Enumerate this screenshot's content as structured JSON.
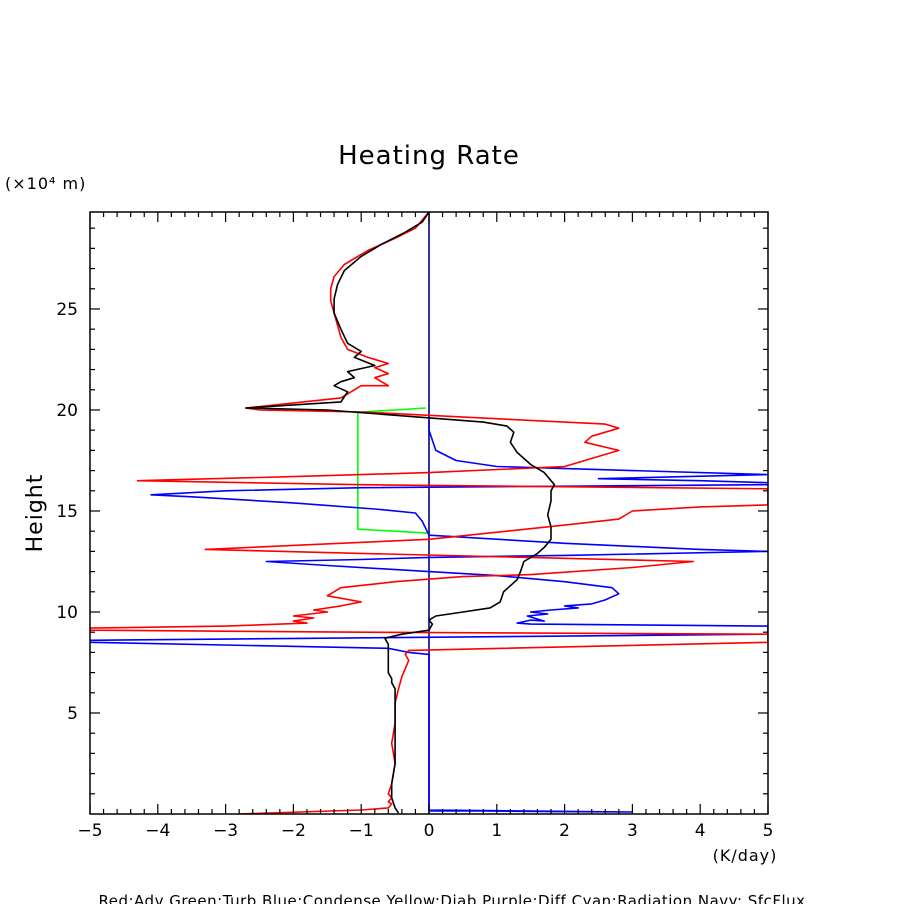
{
  "chart_data": {
    "type": "line",
    "title": "Heating Rate",
    "xlabel": "(K/day)",
    "ylabel": "Height",
    "y_unit": "(×10⁴ m)",
    "xlim": [
      -5,
      5
    ],
    "ylim": [
      0,
      29.8
    ],
    "x_ticks": [
      -5,
      -4,
      -3,
      -2,
      -1,
      0,
      1,
      2,
      3,
      4,
      5
    ],
    "y_ticks": [
      5,
      10,
      15,
      20,
      25
    ],
    "grid": false,
    "legend_text": "Red:Adv  Green:Turb  Blue:Condense  Yellow:Diab  Purple:Diff  Cyan:Radiation  Navy: SfcFlux",
    "colors": {
      "red": "#ff0000",
      "green": "#00ff00",
      "blue": "#0000ff",
      "navy": "#000080",
      "black": "#000000"
    },
    "series": [
      {
        "color": "navy",
        "points": [
          [
            0,
            0
          ],
          [
            0,
            29.8
          ]
        ]
      },
      {
        "color": "green",
        "points": [
          [
            -0.05,
            20.1
          ],
          [
            -0.5,
            20.0
          ],
          [
            -1.0,
            19.9
          ],
          [
            -1.05,
            19.9
          ],
          [
            -1.05,
            14.1
          ],
          [
            -0.5,
            14.0
          ],
          [
            0,
            13.9
          ]
        ]
      },
      {
        "color": "blue",
        "points": [
          [
            0,
            0.15
          ],
          [
            0.8,
            0.15
          ],
          [
            1.8,
            0.12
          ],
          [
            3.0,
            0.1
          ],
          [
            0,
            0.2
          ],
          [
            0,
            7.9
          ],
          [
            -0.3,
            8.0
          ],
          [
            -0.6,
            8.2
          ],
          [
            -5,
            8.5
          ],
          [
            -5,
            8.6
          ],
          [
            5,
            8.9
          ],
          [
            5,
            9.0
          ],
          [
            5,
            9.3
          ],
          [
            1.5,
            9.4
          ],
          [
            1.3,
            9.45
          ],
          [
            1.5,
            9.6
          ],
          [
            1.7,
            9.55
          ],
          [
            1.45,
            9.8
          ],
          [
            1.75,
            9.9
          ],
          [
            1.5,
            10.0
          ],
          [
            1.8,
            10.1
          ],
          [
            2.2,
            10.2
          ],
          [
            2.0,
            10.3
          ],
          [
            2.4,
            10.4
          ],
          [
            2.6,
            10.6
          ],
          [
            2.8,
            10.9
          ],
          [
            2.7,
            11.2
          ],
          [
            2.0,
            11.5
          ],
          [
            1.0,
            11.8
          ],
          [
            0,
            12.0
          ],
          [
            -1.5,
            12.3
          ],
          [
            -2.4,
            12.5
          ],
          [
            -1.0,
            12.6
          ],
          [
            0,
            12.7
          ],
          [
            2.0,
            12.8
          ],
          [
            5,
            13.0
          ],
          [
            4.0,
            13.1
          ],
          [
            2.0,
            13.4
          ],
          [
            0.0,
            13.8
          ],
          [
            -0.1,
            14.5
          ],
          [
            -0.2,
            14.9
          ],
          [
            -0.8,
            15.1
          ],
          [
            -2.0,
            15.4
          ],
          [
            -3.5,
            15.7
          ],
          [
            -4.1,
            15.8
          ],
          [
            -3.0,
            16.0
          ],
          [
            -1.0,
            16.15
          ],
          [
            3.0,
            16.25
          ],
          [
            5.0,
            16.3
          ],
          [
            5.0,
            16.4
          ],
          [
            4.0,
            16.5
          ],
          [
            2.5,
            16.6
          ],
          [
            5.0,
            16.8
          ],
          [
            1.0,
            17.2
          ],
          [
            0.4,
            17.5
          ],
          [
            0.1,
            18.0
          ],
          [
            0.0,
            19.0
          ],
          [
            0.0,
            19.5
          ]
        ]
      },
      {
        "color": "red",
        "points": [
          [
            -2.8,
            0
          ],
          [
            -1.0,
            0.2
          ],
          [
            -0.6,
            0.3
          ],
          [
            -0.55,
            0.5
          ],
          [
            -0.6,
            0.6
          ],
          [
            -0.55,
            0.8
          ],
          [
            -0.6,
            1.0
          ],
          [
            -0.55,
            1.5
          ],
          [
            -0.5,
            2.5
          ],
          [
            -0.55,
            3.5
          ],
          [
            -0.5,
            4.5
          ],
          [
            -0.5,
            5.5
          ],
          [
            -0.45,
            6.2
          ],
          [
            -0.4,
            6.8
          ],
          [
            -0.35,
            7.2
          ],
          [
            -0.3,
            7.6
          ],
          [
            -0.35,
            7.9
          ],
          [
            -0.3,
            8.1
          ],
          [
            5.0,
            8.5
          ],
          [
            5.0,
            8.9
          ],
          [
            -1.0,
            9.0
          ],
          [
            -5.0,
            9.1
          ],
          [
            -5.0,
            9.2
          ],
          [
            -3.0,
            9.3
          ],
          [
            -1.8,
            9.45
          ],
          [
            -2.0,
            9.55
          ],
          [
            -1.7,
            9.7
          ],
          [
            -2.0,
            9.8
          ],
          [
            -1.5,
            10.0
          ],
          [
            -1.7,
            10.1
          ],
          [
            -1.3,
            10.3
          ],
          [
            -1.0,
            10.5
          ],
          [
            -1.5,
            10.8
          ],
          [
            -1.3,
            11.2
          ],
          [
            -0.5,
            11.5
          ],
          [
            0.5,
            11.75
          ],
          [
            1.5,
            11.85
          ],
          [
            3.0,
            12.2
          ],
          [
            3.9,
            12.5
          ],
          [
            -1.0,
            12.9
          ],
          [
            -3.3,
            13.1
          ],
          [
            0.0,
            13.6
          ],
          [
            2.0,
            14.3
          ],
          [
            2.8,
            14.6
          ],
          [
            3.0,
            15.0
          ],
          [
            4.0,
            15.2
          ],
          [
            5.0,
            15.3
          ],
          [
            5.0,
            16.1
          ],
          [
            -1.0,
            16.3
          ],
          [
            -4.3,
            16.5
          ],
          [
            -2.0,
            16.7
          ],
          [
            0.0,
            16.9
          ],
          [
            2.0,
            17.2
          ],
          [
            2.8,
            18.0
          ],
          [
            2.3,
            18.4
          ],
          [
            2.4,
            18.7
          ],
          [
            2.8,
            19.1
          ],
          [
            2.6,
            19.3
          ],
          [
            -1.0,
            19.9
          ],
          [
            -2.5,
            20.0
          ],
          [
            -2.7,
            20.1
          ],
          [
            -1.3,
            20.6
          ],
          [
            -1.0,
            21.2
          ],
          [
            -0.6,
            21.2
          ],
          [
            -0.8,
            21.6
          ],
          [
            -0.6,
            21.8
          ],
          [
            -0.8,
            22.1
          ],
          [
            -0.6,
            22.3
          ],
          [
            -0.9,
            22.6
          ],
          [
            -1.2,
            23.0
          ],
          [
            -1.3,
            23.6
          ],
          [
            -1.35,
            24.2
          ],
          [
            -1.4,
            24.8
          ],
          [
            -1.45,
            25.4
          ],
          [
            -1.45,
            26.0
          ],
          [
            -1.4,
            26.6
          ],
          [
            -1.25,
            27.2
          ],
          [
            -0.9,
            27.9
          ],
          [
            -0.5,
            28.5
          ],
          [
            -0.2,
            29.0
          ],
          [
            0,
            29.8
          ]
        ]
      },
      {
        "color": "black",
        "points": [
          [
            -0.45,
            0.05
          ],
          [
            -0.5,
            0.3
          ],
          [
            -0.55,
            0.8
          ],
          [
            -0.55,
            1.5
          ],
          [
            -0.5,
            2.5
          ],
          [
            -0.5,
            3.5
          ],
          [
            -0.5,
            4.5
          ],
          [
            -0.5,
            5.5
          ],
          [
            -0.5,
            6.2
          ],
          [
            -0.55,
            6.5
          ],
          [
            -0.55,
            6.7
          ],
          [
            -0.6,
            7.0
          ],
          [
            -0.6,
            7.5
          ],
          [
            -0.6,
            8.0
          ],
          [
            -0.6,
            8.4
          ],
          [
            -0.65,
            8.7
          ],
          [
            -0.4,
            8.9
          ],
          [
            -0.2,
            9.0
          ],
          [
            0.0,
            9.1
          ],
          [
            0.05,
            9.4
          ],
          [
            0.0,
            9.6
          ],
          [
            0.1,
            9.8
          ],
          [
            0.5,
            10.0
          ],
          [
            0.9,
            10.2
          ],
          [
            1.05,
            10.5
          ],
          [
            1.1,
            11.0
          ],
          [
            1.3,
            11.6
          ],
          [
            1.35,
            12.0
          ],
          [
            1.4,
            12.5
          ],
          [
            1.6,
            12.9
          ],
          [
            1.7,
            13.2
          ],
          [
            1.8,
            13.6
          ],
          [
            1.8,
            14.2
          ],
          [
            1.75,
            14.8
          ],
          [
            1.8,
            15.5
          ],
          [
            1.8,
            16.0
          ],
          [
            1.85,
            16.3
          ],
          [
            1.8,
            16.5
          ],
          [
            1.7,
            16.9
          ],
          [
            1.5,
            17.3
          ],
          [
            1.3,
            17.9
          ],
          [
            1.2,
            18.4
          ],
          [
            1.25,
            18.9
          ],
          [
            1.15,
            19.2
          ],
          [
            0.8,
            19.4
          ],
          [
            -1.5,
            20.0
          ],
          [
            -2.7,
            20.1
          ],
          [
            -1.3,
            20.4
          ],
          [
            -1.2,
            20.9
          ],
          [
            -1.4,
            21.2
          ],
          [
            -1.3,
            21.4
          ],
          [
            -1.1,
            21.6
          ],
          [
            -1.2,
            21.9
          ],
          [
            -0.8,
            22.2
          ],
          [
            -1.1,
            22.6
          ],
          [
            -1.0,
            22.9
          ],
          [
            -1.2,
            23.3
          ],
          [
            -1.3,
            24.0
          ],
          [
            -1.4,
            24.8
          ],
          [
            -1.4,
            25.5
          ],
          [
            -1.35,
            26.2
          ],
          [
            -1.25,
            26.9
          ],
          [
            -1.0,
            27.6
          ],
          [
            -0.7,
            28.2
          ],
          [
            -0.35,
            28.8
          ],
          [
            -0.1,
            29.3
          ],
          [
            0,
            29.8
          ]
        ]
      }
    ]
  }
}
